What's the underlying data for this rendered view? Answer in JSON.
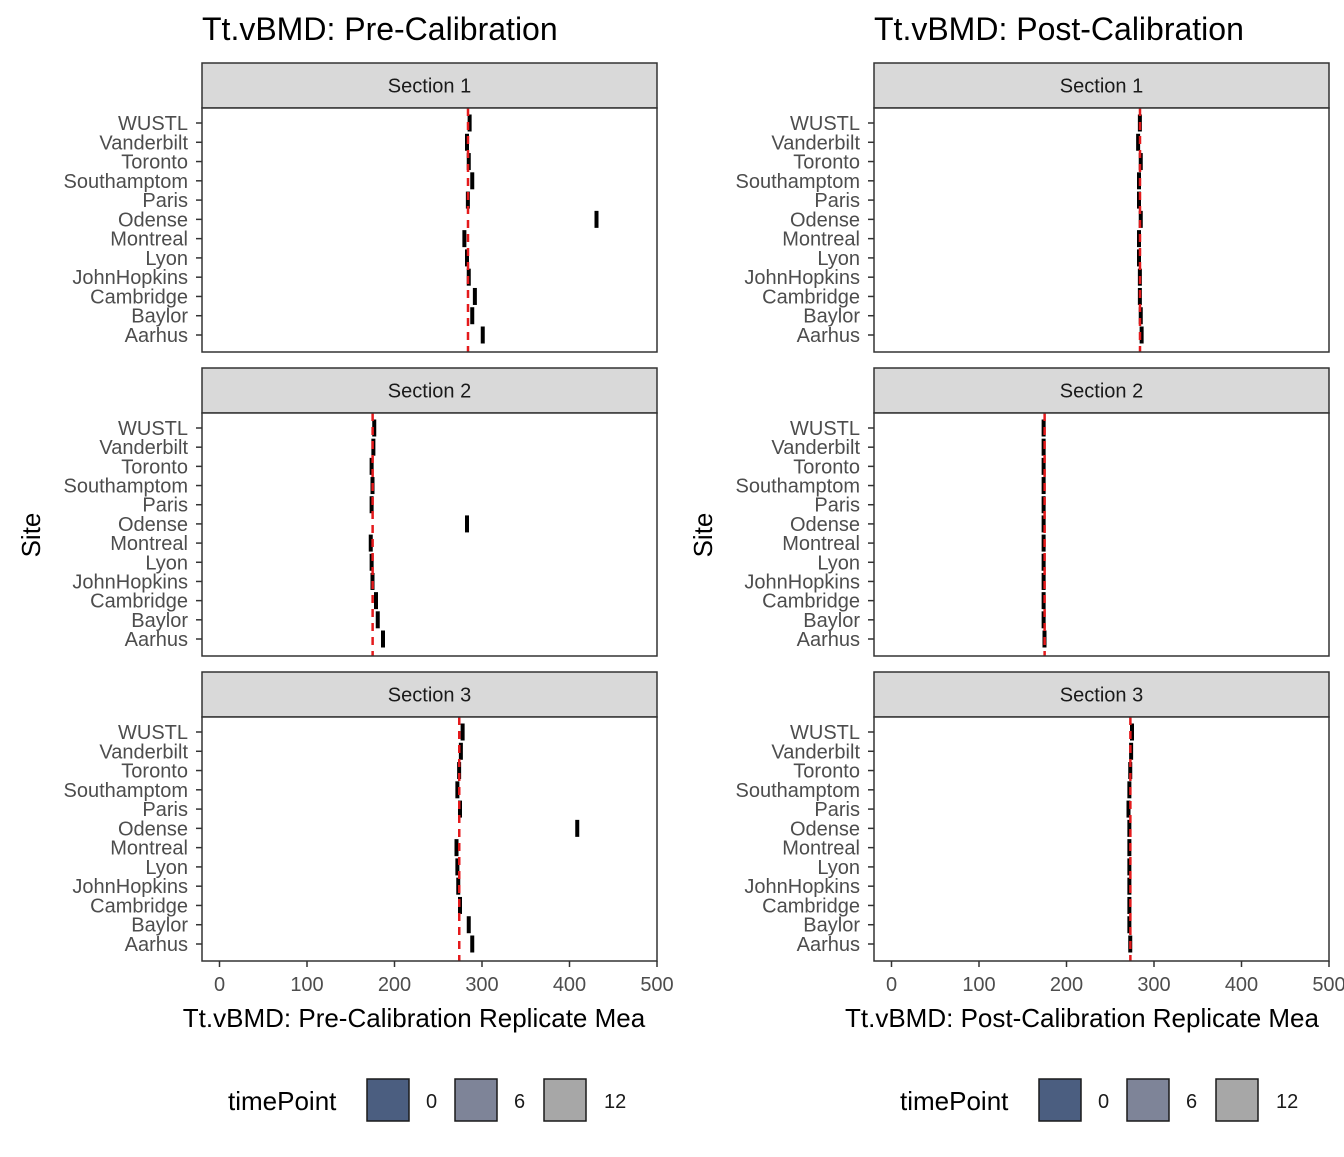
{
  "chart_data": [
    {
      "type": "bar",
      "orientation": "horizontal",
      "title": "Tt.vBMD: Pre-Calibration",
      "xlabel": "Tt.vBMD: Pre-Calibration Replicate Mea",
      "ylabel": "Site",
      "xlim": [
        -20,
        500
      ],
      "x_ticks": [
        0,
        100,
        200,
        300,
        400,
        500
      ],
      "x_tick_labels": [
        "0",
        "100",
        "200",
        "300",
        "400",
        "500"
      ],
      "sites": [
        "WUSTL",
        "Vanderbilt",
        "Toronto",
        "Southamptom",
        "Paris",
        "Odense",
        "Montreal",
        "Lyon",
        "JohnHopkins",
        "Cambridge",
        "Baylor",
        "Aarhus"
      ],
      "panels": [
        {
          "label": "Section 1",
          "reference_line": 284,
          "bars": [
            {
              "site": "WUSTL",
              "value": 287
            },
            {
              "site": "Vanderbilt",
              "value": 284
            },
            {
              "site": "Toronto",
              "value": 286
            },
            {
              "site": "Southamptom",
              "value": 290
            },
            {
              "site": "Paris",
              "value": 285
            },
            {
              "site": "Odense",
              "value": 432
            },
            {
              "site": "Montreal",
              "value": 281
            },
            {
              "site": "Lyon",
              "value": 284
            },
            {
              "site": "JohnHopkins",
              "value": 286
            },
            {
              "site": "Cambridge",
              "value": 293
            },
            {
              "site": "Baylor",
              "value": 290
            },
            {
              "site": "Aarhus",
              "value": 302
            }
          ]
        },
        {
          "label": "Section 2",
          "reference_line": 175,
          "bars": [
            {
              "site": "WUSTL",
              "value": 178
            },
            {
              "site": "Vanderbilt",
              "value": 177
            },
            {
              "site": "Toronto",
              "value": 175
            },
            {
              "site": "Southamptom",
              "value": 176
            },
            {
              "site": "Paris",
              "value": 175
            },
            {
              "site": "Odense",
              "value": 284
            },
            {
              "site": "Montreal",
              "value": 174
            },
            {
              "site": "Lyon",
              "value": 175
            },
            {
              "site": "JohnHopkins",
              "value": 176
            },
            {
              "site": "Cambridge",
              "value": 180
            },
            {
              "site": "Baylor",
              "value": 182
            },
            {
              "site": "Aarhus",
              "value": 188
            }
          ]
        },
        {
          "label": "Section 3",
          "reference_line": 274,
          "bars": [
            {
              "site": "WUSTL",
              "value": 279
            },
            {
              "site": "Vanderbilt",
              "value": 277
            },
            {
              "site": "Toronto",
              "value": 275
            },
            {
              "site": "Southamptom",
              "value": 273
            },
            {
              "site": "Paris",
              "value": 276
            },
            {
              "site": "Odense",
              "value": 410
            },
            {
              "site": "Montreal",
              "value": 272
            },
            {
              "site": "Lyon",
              "value": 273
            },
            {
              "site": "JohnHopkins",
              "value": 274
            },
            {
              "site": "Cambridge",
              "value": 276
            },
            {
              "site": "Baylor",
              "value": 286
            },
            {
              "site": "Aarhus",
              "value": 290
            }
          ]
        }
      ]
    },
    {
      "type": "bar",
      "orientation": "horizontal",
      "title": "Tt.vBMD: Post-Calibration",
      "xlabel": "Tt.vBMD: Post-Calibration Replicate Mea",
      "ylabel": "Site",
      "xlim": [
        -20,
        500
      ],
      "x_ticks": [
        0,
        100,
        200,
        300,
        400,
        500
      ],
      "x_tick_labels": [
        "0",
        "100",
        "200",
        "300",
        "400",
        "500"
      ],
      "sites": [
        "WUSTL",
        "Vanderbilt",
        "Toronto",
        "Southamptom",
        "Paris",
        "Odense",
        "Montreal",
        "Lyon",
        "JohnHopkins",
        "Cambridge",
        "Baylor",
        "Aarhus"
      ],
      "panels": [
        {
          "label": "Section 1",
          "reference_line": 284,
          "bars": [
            {
              "site": "WUSTL",
              "value": 285
            },
            {
              "site": "Vanderbilt",
              "value": 283
            },
            {
              "site": "Toronto",
              "value": 286
            },
            {
              "site": "Southamptom",
              "value": 284
            },
            {
              "site": "Paris",
              "value": 284
            },
            {
              "site": "Odense",
              "value": 286
            },
            {
              "site": "Montreal",
              "value": 284
            },
            {
              "site": "Lyon",
              "value": 284
            },
            {
              "site": "JohnHopkins",
              "value": 285
            },
            {
              "site": "Cambridge",
              "value": 285
            },
            {
              "site": "Baylor",
              "value": 286
            },
            {
              "site": "Aarhus",
              "value": 287
            }
          ]
        },
        {
          "label": "Section 2",
          "reference_line": 175,
          "bars": [
            {
              "site": "WUSTL",
              "value": 175
            },
            {
              "site": "Vanderbilt",
              "value": 175
            },
            {
              "site": "Toronto",
              "value": 175
            },
            {
              "site": "Southamptom",
              "value": 175
            },
            {
              "site": "Paris",
              "value": 175
            },
            {
              "site": "Odense",
              "value": 175
            },
            {
              "site": "Montreal",
              "value": 175
            },
            {
              "site": "Lyon",
              "value": 175
            },
            {
              "site": "JohnHopkins",
              "value": 175
            },
            {
              "site": "Cambridge",
              "value": 175
            },
            {
              "site": "Baylor",
              "value": 175
            },
            {
              "site": "Aarhus",
              "value": 176
            }
          ]
        },
        {
          "label": "Section 3",
          "reference_line": 273,
          "bars": [
            {
              "site": "WUSTL",
              "value": 276
            },
            {
              "site": "Vanderbilt",
              "value": 275
            },
            {
              "site": "Toronto",
              "value": 274
            },
            {
              "site": "Southamptom",
              "value": 273
            },
            {
              "site": "Paris",
              "value": 272
            },
            {
              "site": "Odense",
              "value": 273
            },
            {
              "site": "Montreal",
              "value": 273
            },
            {
              "site": "Lyon",
              "value": 273
            },
            {
              "site": "JohnHopkins",
              "value": 273
            },
            {
              "site": "Cambridge",
              "value": 273
            },
            {
              "site": "Baylor",
              "value": 273
            },
            {
              "site": "Aarhus",
              "value": 274
            }
          ]
        }
      ]
    }
  ],
  "legend": {
    "title": "timePoint",
    "placement": "bottom",
    "items": [
      {
        "label": "0",
        "color": "#4b5e80"
      },
      {
        "label": "6",
        "color": "#7e8498"
      },
      {
        "label": "12",
        "color": "#a7a7a7"
      }
    ]
  },
  "colors": {
    "bar": "#000000",
    "reference_line": "#e41a1c",
    "strip_fill": "#d9d9d9",
    "panel_border": "#333333",
    "tick_text": "#4d4d4d"
  }
}
